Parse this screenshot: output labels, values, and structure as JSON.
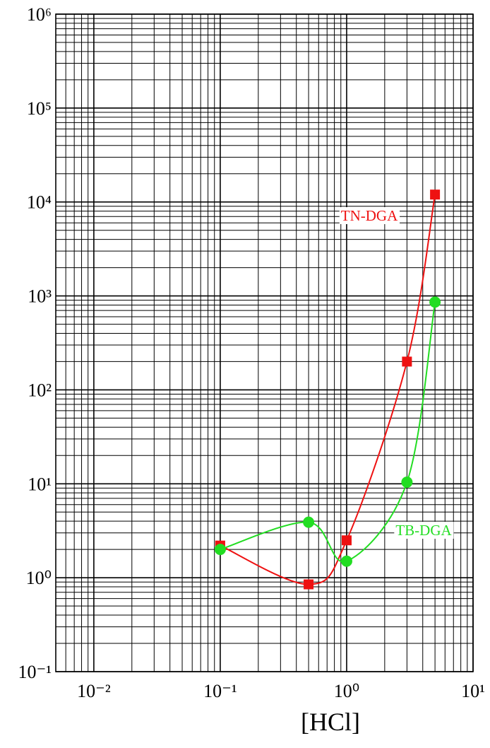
{
  "chart_data": {
    "type": "line",
    "xlabel": "[HCl]",
    "log_x": true,
    "log_y": true,
    "grid": true,
    "minor_grid": true,
    "xlim": [
      0.005,
      10
    ],
    "ylim": [
      0.1,
      1000000
    ],
    "xticks": [
      {
        "value": 0.01,
        "label": "10⁻²"
      },
      {
        "value": 0.1,
        "label": "10⁻¹"
      },
      {
        "value": 1,
        "label": "10⁰"
      },
      {
        "value": 10,
        "label": "10¹"
      }
    ],
    "yticks": [
      {
        "value": 0.1,
        "label": "10⁻¹"
      },
      {
        "value": 1,
        "label": "10⁰"
      },
      {
        "value": 10,
        "label": "10¹"
      },
      {
        "value": 100,
        "label": "10²"
      },
      {
        "value": 1000,
        "label": "10³"
      },
      {
        "value": 10000,
        "label": "10⁴"
      },
      {
        "value": 100000,
        "label": "10⁵"
      },
      {
        "value": 1000000,
        "label": "10⁶"
      }
    ],
    "series": [
      {
        "name": "TN-DGA",
        "color": "#ee1111",
        "marker": "square",
        "x": [
          0.1,
          0.5,
          1,
          3,
          5
        ],
        "values": [
          2.2,
          0.85,
          2.5,
          200,
          12000
        ]
      },
      {
        "name": "TB-DGA",
        "color": "#22dd22",
        "marker": "circle",
        "x": [
          0.1,
          0.5,
          1,
          3,
          5
        ],
        "values": [
          2.0,
          3.9,
          1.5,
          10.4,
          860
        ]
      }
    ]
  }
}
